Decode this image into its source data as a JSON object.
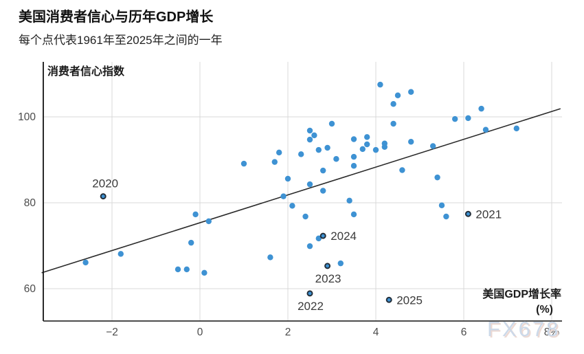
{
  "header": {
    "title": "美国消费者信心与历年GDP增长",
    "subtitle": "每个点代表1961年至2025年之间的一年"
  },
  "watermark": "FX678",
  "colors": {
    "dot": "#3E92D3",
    "ring_stroke": "#232e39",
    "trend": "#2b2b2b",
    "grid": "#d9d9d9",
    "axis": "#333333",
    "tick_text": "#4a4a4a",
    "year_label": "#3a3a3a",
    "axis_title": "#1a1a1a",
    "watermark_fill": "#ccd9e9",
    "watermark_shadow": "#ecd9d3"
  },
  "chart_data": {
    "type": "scatter",
    "title": "美国消费者信心与历年GDP增长",
    "subtitle": "每个点代表1961年至2025年之间的一年",
    "ylabel": "消费者信心指数",
    "xlabel": "美国GDP增长率",
    "xlabel_unit": "(%)",
    "x_ticks": [
      -2,
      0,
      2,
      4,
      6,
      8
    ],
    "x_tick_labels": [
      "−2",
      "0",
      "2",
      "4",
      "6",
      "8%"
    ],
    "y_ticks": [
      60,
      80,
      100
    ],
    "y_tick_labels": [
      "60",
      "80",
      "100"
    ],
    "xlim": [
      -3.6,
      8.2
    ],
    "ylim": [
      52.5,
      112.8
    ],
    "grid": true,
    "trend_line": {
      "x1": -3.6,
      "y1": 63.7,
      "x2": 8.2,
      "y2": 101.9
    },
    "points": [
      [
        -2.6,
        66.1
      ],
      [
        -1.8,
        68.1
      ],
      [
        -0.5,
        64.5
      ],
      [
        -0.3,
        64.5
      ],
      [
        0.1,
        63.7
      ],
      [
        -0.1,
        77.3
      ],
      [
        0.2,
        75.7
      ],
      [
        -0.2,
        70.7
      ],
      [
        1.0,
        89.1
      ],
      [
        1.7,
        89.5
      ],
      [
        1.8,
        91.7
      ],
      [
        2.3,
        91.3
      ],
      [
        2.0,
        85.6
      ],
      [
        1.9,
        81.5
      ],
      [
        2.1,
        79.3
      ],
      [
        1.6,
        67.3
      ],
      [
        2.5,
        94.7
      ],
      [
        2.5,
        96.8
      ],
      [
        2.6,
        95.7
      ],
      [
        3.0,
        98.4
      ],
      [
        2.9,
        92.8
      ],
      [
        2.7,
        92.3
      ],
      [
        3.1,
        90.2
      ],
      [
        3.5,
        90.7
      ],
      [
        3.5,
        88.6
      ],
      [
        2.8,
        87.5
      ],
      [
        2.5,
        84.3
      ],
      [
        2.8,
        82.8
      ],
      [
        3.4,
        80.5
      ],
      [
        3.5,
        77.3
      ],
      [
        2.4,
        76.8
      ],
      [
        2.7,
        71.7
      ],
      [
        2.5,
        69.9
      ],
      [
        3.2,
        65.9
      ],
      [
        3.5,
        94.8
      ],
      [
        3.8,
        95.3
      ],
      [
        3.8,
        93.6
      ],
      [
        3.7,
        92.5
      ],
      [
        4.0,
        92.3
      ],
      [
        4.2,
        93.8
      ],
      [
        4.2,
        93.0
      ],
      [
        4.1,
        107.5
      ],
      [
        4.5,
        105.0
      ],
      [
        4.8,
        105.8
      ],
      [
        4.4,
        103.0
      ],
      [
        4.4,
        98.4
      ],
      [
        4.8,
        94.2
      ],
      [
        5.3,
        93.2
      ],
      [
        4.6,
        87.6
      ],
      [
        5.4,
        85.9
      ],
      [
        5.5,
        79.4
      ],
      [
        5.6,
        76.8
      ],
      [
        5.8,
        99.5
      ],
      [
        6.1,
        99.7
      ],
      [
        6.4,
        101.9
      ],
      [
        6.5,
        97.0
      ],
      [
        7.2,
        97.3
      ]
    ],
    "labeled_points": [
      {
        "year": "2020",
        "x": -2.2,
        "y": 81.5,
        "pos": "top"
      },
      {
        "year": "2021",
        "x": 6.1,
        "y": 77.4,
        "pos": "right"
      },
      {
        "year": "2022",
        "x": 2.5,
        "y": 58.9,
        "pos": "bottom"
      },
      {
        "year": "2023",
        "x": 2.9,
        "y": 65.3,
        "pos": "bottom"
      },
      {
        "year": "2024",
        "x": 2.8,
        "y": 72.3,
        "pos": "right"
      },
      {
        "year": "2025",
        "x": 4.3,
        "y": 57.4,
        "pos": "right"
      }
    ]
  }
}
